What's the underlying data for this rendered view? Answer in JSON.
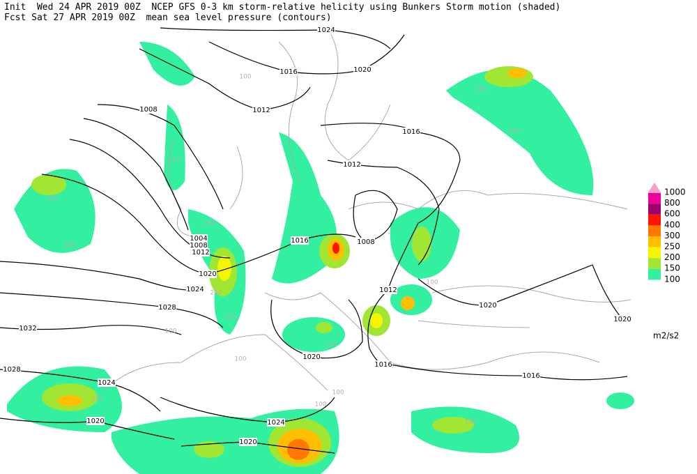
{
  "header": {
    "line1": "Init  Wed 24 APR 2019 00Z  NCEP GFS 0-3 km storm-relative helicity using Bunkers Storm motion (shaded)",
    "line2": "Fcst Sat 27 APR 2019 00Z  mean sea level pressure (contours)"
  },
  "legend": {
    "levels": [
      1000,
      800,
      600,
      400,
      300,
      250,
      200,
      150,
      100
    ],
    "colors": [
      "#f5a0c8",
      "#f0009a",
      "#a0006e",
      "#ff1400",
      "#ff7800",
      "#ffbe00",
      "#f5f500",
      "#a0e632",
      "#32f0a0"
    ],
    "unit": "m2/s2"
  },
  "contour_labels": [
    "1024",
    "1020",
    "1016",
    "1012",
    "1008",
    "1016",
    "1012",
    "1004",
    "1008",
    "1012",
    "1020",
    "1016",
    "1008",
    "1024",
    "1028",
    "1032",
    "1012",
    "1020",
    "1020",
    "1020",
    "1016",
    "1016",
    "1028",
    "1024",
    "1020",
    "1024",
    "1020"
  ],
  "shading_labels": [
    "100",
    "150",
    "100",
    "150",
    "200",
    "100",
    "150",
    "100",
    "150",
    "100",
    "200",
    "150",
    "100",
    "150",
    "100",
    "150",
    "100"
  ]
}
